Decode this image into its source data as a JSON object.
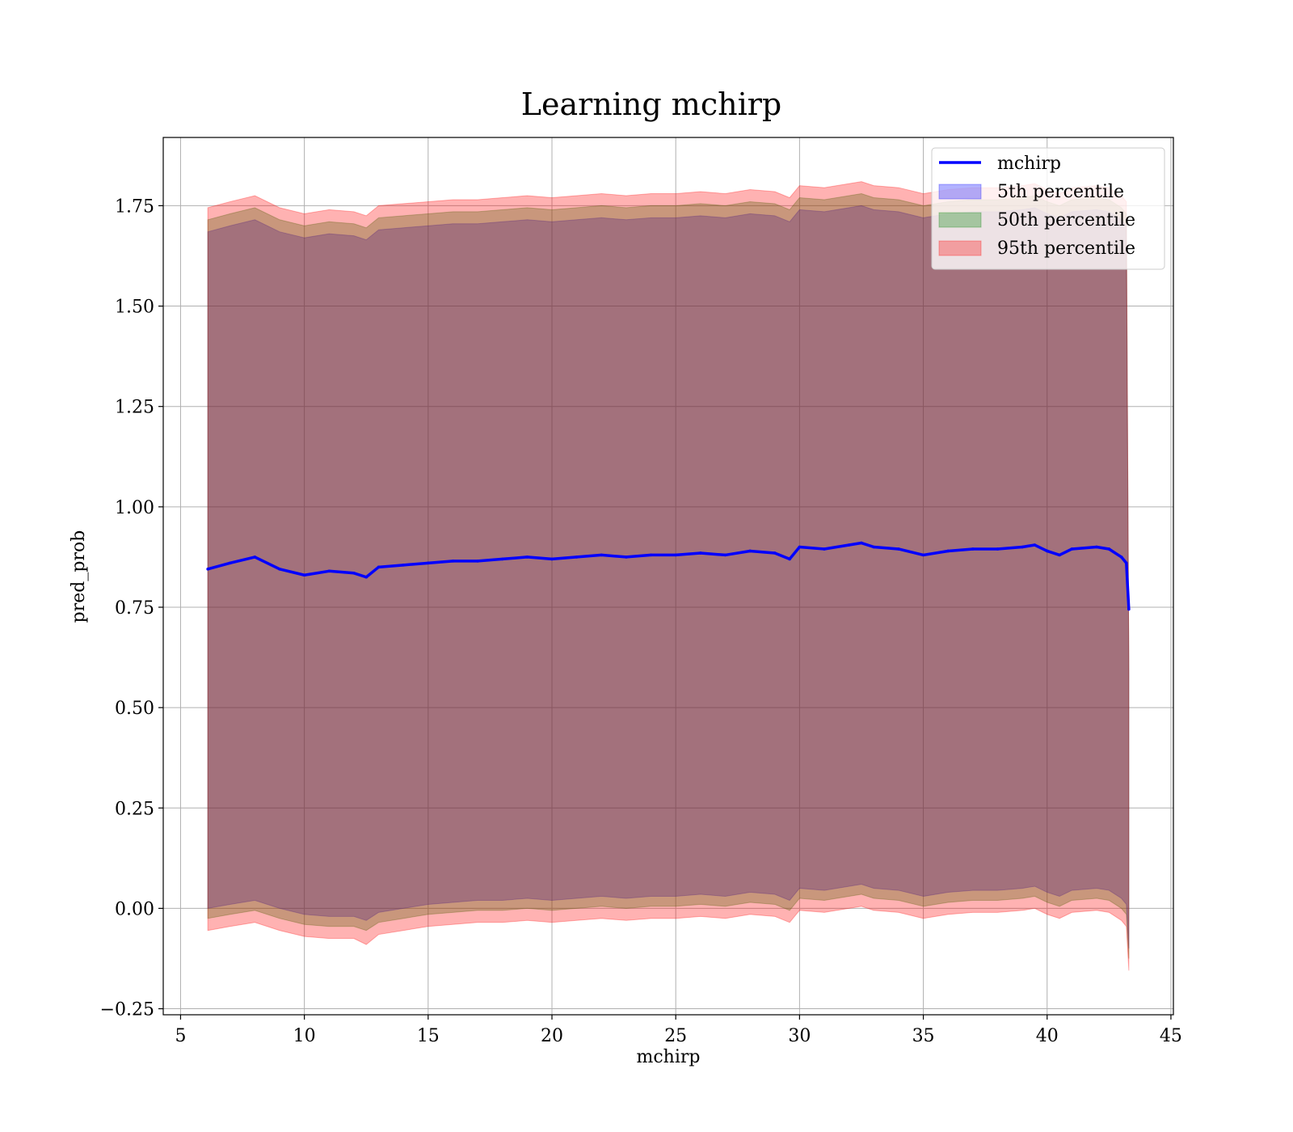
{
  "chart_data": {
    "type": "line",
    "title": "Learning mchirp",
    "xlabel": "mchirp",
    "ylabel": "pred_prob",
    "xlim": [
      4.3,
      45.1
    ],
    "ylim": [
      -0.265,
      1.92
    ],
    "xticks": [
      5,
      10,
      15,
      20,
      25,
      30,
      35,
      40,
      45
    ],
    "xtick_labels": [
      "5",
      "10",
      "15",
      "20",
      "25",
      "30",
      "35",
      "40",
      "45"
    ],
    "yticks": [
      -0.25,
      0.0,
      0.25,
      0.5,
      0.75,
      1.0,
      1.25,
      1.5,
      1.75
    ],
    "ytick_labels": [
      "−0.25",
      "0.00",
      "0.25",
      "0.50",
      "0.75",
      "1.00",
      "1.25",
      "1.50",
      "1.75"
    ],
    "grid": true,
    "legend_position": "top-right",
    "x": [
      6.1,
      7.0,
      8.0,
      9.0,
      10.0,
      11.0,
      12.0,
      12.5,
      13.0,
      14.0,
      15.0,
      16.0,
      17.0,
      18.0,
      19.0,
      20.0,
      21.0,
      22.0,
      23.0,
      24.0,
      25.0,
      26.0,
      27.0,
      28.0,
      29.0,
      29.6,
      30.0,
      31.0,
      32.0,
      32.5,
      33.0,
      34.0,
      35.0,
      36.0,
      37.0,
      38.0,
      39.0,
      39.5,
      40.0,
      40.5,
      41.0,
      42.0,
      42.5,
      43.0,
      43.2,
      43.3
    ],
    "series": [
      {
        "name": "mchirp",
        "style": "line",
        "color": "#0000ff",
        "values": [
          0.845,
          0.86,
          0.875,
          0.845,
          0.83,
          0.84,
          0.835,
          0.825,
          0.85,
          0.855,
          0.86,
          0.865,
          0.865,
          0.87,
          0.875,
          0.87,
          0.875,
          0.88,
          0.875,
          0.88,
          0.88,
          0.885,
          0.88,
          0.89,
          0.885,
          0.87,
          0.9,
          0.895,
          0.905,
          0.91,
          0.9,
          0.895,
          0.88,
          0.89,
          0.895,
          0.895,
          0.9,
          0.905,
          0.89,
          0.88,
          0.895,
          0.9,
          0.895,
          0.875,
          0.86,
          0.745
        ]
      },
      {
        "name": "5th percentile",
        "style": "band",
        "color": "#0000ff",
        "lower": [
          0.0,
          0.01,
          0.02,
          0.0,
          -0.015,
          -0.02,
          -0.02,
          -0.03,
          -0.01,
          0.0,
          0.01,
          0.015,
          0.02,
          0.02,
          0.025,
          0.02,
          0.025,
          0.03,
          0.025,
          0.03,
          0.03,
          0.035,
          0.03,
          0.04,
          0.035,
          0.02,
          0.05,
          0.045,
          0.055,
          0.06,
          0.05,
          0.045,
          0.03,
          0.04,
          0.045,
          0.045,
          0.05,
          0.055,
          0.04,
          0.03,
          0.045,
          0.05,
          0.045,
          0.025,
          0.01,
          -0.1
        ],
        "upper": [
          1.685,
          1.7,
          1.715,
          1.685,
          1.67,
          1.68,
          1.675,
          1.665,
          1.69,
          1.695,
          1.7,
          1.705,
          1.705,
          1.71,
          1.715,
          1.71,
          1.715,
          1.72,
          1.715,
          1.72,
          1.72,
          1.725,
          1.72,
          1.73,
          1.725,
          1.71,
          1.74,
          1.735,
          1.745,
          1.75,
          1.74,
          1.735,
          1.72,
          1.73,
          1.735,
          1.735,
          1.74,
          1.745,
          1.73,
          1.72,
          1.735,
          1.74,
          1.735,
          1.715,
          1.7,
          0.58
        ]
      },
      {
        "name": "50th percentile",
        "style": "band",
        "color": "#008000",
        "lower": [
          -0.025,
          -0.015,
          -0.005,
          -0.025,
          -0.04,
          -0.045,
          -0.045,
          -0.055,
          -0.035,
          -0.025,
          -0.015,
          -0.01,
          -0.005,
          -0.005,
          0.0,
          -0.005,
          0.0,
          0.005,
          0.0,
          0.005,
          0.005,
          0.01,
          0.005,
          0.015,
          0.01,
          -0.005,
          0.025,
          0.02,
          0.03,
          0.035,
          0.025,
          0.02,
          0.005,
          0.015,
          0.02,
          0.02,
          0.025,
          0.03,
          0.015,
          0.005,
          0.02,
          0.025,
          0.02,
          0.0,
          -0.015,
          -0.125
        ],
        "upper": [
          1.715,
          1.73,
          1.745,
          1.715,
          1.7,
          1.71,
          1.705,
          1.695,
          1.72,
          1.725,
          1.73,
          1.735,
          1.735,
          1.74,
          1.745,
          1.74,
          1.745,
          1.75,
          1.745,
          1.75,
          1.75,
          1.755,
          1.75,
          1.76,
          1.755,
          1.74,
          1.77,
          1.765,
          1.775,
          1.78,
          1.77,
          1.765,
          1.75,
          1.76,
          1.765,
          1.765,
          1.77,
          1.775,
          1.76,
          1.75,
          1.765,
          1.77,
          1.765,
          1.745,
          1.73,
          0.6
        ]
      },
      {
        "name": "95th percentile",
        "style": "band",
        "color": "#ff0000",
        "lower": [
          -0.055,
          -0.045,
          -0.035,
          -0.055,
          -0.07,
          -0.075,
          -0.075,
          -0.09,
          -0.065,
          -0.055,
          -0.045,
          -0.04,
          -0.035,
          -0.035,
          -0.03,
          -0.035,
          -0.03,
          -0.025,
          -0.03,
          -0.025,
          -0.025,
          -0.02,
          -0.025,
          -0.015,
          -0.02,
          -0.035,
          -0.005,
          -0.01,
          0.0,
          0.005,
          -0.005,
          -0.01,
          -0.025,
          -0.015,
          -0.01,
          -0.01,
          -0.005,
          0.0,
          -0.015,
          -0.025,
          -0.01,
          -0.005,
          -0.01,
          -0.03,
          -0.045,
          -0.155
        ],
        "upper": [
          1.745,
          1.76,
          1.775,
          1.745,
          1.73,
          1.74,
          1.735,
          1.725,
          1.75,
          1.755,
          1.76,
          1.765,
          1.765,
          1.77,
          1.775,
          1.77,
          1.775,
          1.78,
          1.775,
          1.78,
          1.78,
          1.785,
          1.78,
          1.79,
          1.785,
          1.77,
          1.8,
          1.795,
          1.805,
          1.81,
          1.8,
          1.795,
          1.78,
          1.79,
          1.795,
          1.795,
          1.8,
          1.805,
          1.79,
          1.78,
          1.795,
          1.8,
          1.795,
          1.775,
          1.76,
          0.62
        ]
      }
    ]
  }
}
